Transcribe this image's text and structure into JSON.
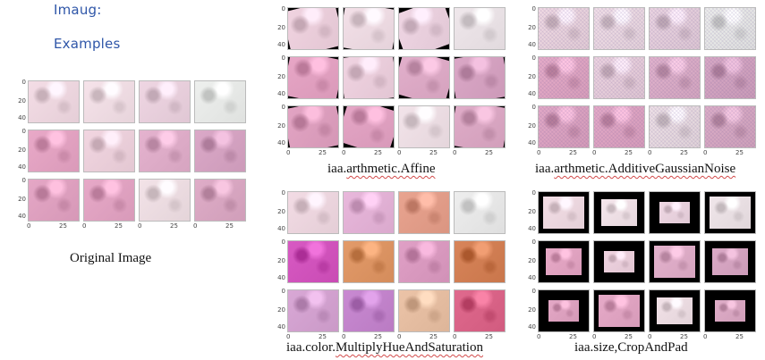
{
  "heading": {
    "line1": "Imaug:",
    "line2": "Examples"
  },
  "axis": {
    "y_ticks": [
      "0",
      "20",
      "40"
    ],
    "x_ticks": [
      "0",
      "25"
    ]
  },
  "panels": [
    {
      "id": "original",
      "caption_plain": "Original Image",
      "caption_squiggle": "",
      "mode": "plain",
      "tiles": [
        [
          "#f4dde6",
          "#f6e3ea",
          "#efd6e3",
          "#eef0ee"
        ],
        [
          "#e9a9c8",
          "#f2d6e1",
          "#e5b3cf",
          "#dba9c8"
        ],
        [
          "#e5a7c6",
          "#e7a9c8",
          "#f3e3e8",
          "#dfadc8"
        ]
      ]
    },
    {
      "id": "affine",
      "caption_plain": "iaa.",
      "caption_squiggle": "arthmetic.Affine",
      "mode": "rotate",
      "tiles": [
        [
          "#f1d4e1",
          "#f4e1e9",
          "#f0d6e4",
          "#f0e8ec"
        ],
        [
          "#e8a7c7",
          "#f1d4e2",
          "#e3b0cc",
          "#dba8c7"
        ],
        [
          "#e3a5c4",
          "#e6a7c7",
          "#f3e4ea",
          "#e0adc9"
        ]
      ]
    },
    {
      "id": "noise",
      "caption_plain": "iaa.",
      "caption_squiggle": "arthmetic.AdditiveGaussianNoise",
      "mode": "noise",
      "tiles": [
        [
          "#f1dbe4",
          "#f2e0e8",
          "#ecd6e2",
          "#eeefed"
        ],
        [
          "#e7adc9",
          "#eed5e1",
          "#e2b4cd",
          "#d9aac6"
        ],
        [
          "#e3aac7",
          "#e5abc8",
          "#efe2e7",
          "#ddafc8"
        ]
      ]
    },
    {
      "id": "hue",
      "caption_plain": "iaa.color.",
      "caption_squiggle": "MultiplyHueAndSaturation",
      "mode": "hue",
      "tiles": [
        [
          "#f3dce5",
          "#e9b8dc",
          "#e9a490",
          "#eeeeee"
        ],
        [
          "#d85ac3",
          "#e39b6a",
          "#e0a0c6",
          "#d8855a"
        ],
        [
          "#d9a8d6",
          "#c98ad2",
          "#ecc4a8",
          "#e06a8e"
        ]
      ]
    },
    {
      "id": "croppad",
      "caption_plain": "iaa.size,CropAndPad",
      "caption_squiggle": "",
      "mode": "pad",
      "tiles": [
        [
          "#f3dee6",
          "#f5e6ec",
          "#efd8e4",
          "#f0e6ea"
        ],
        [
          "#e8aac8",
          "#f0d4e1",
          "#e4b2cd",
          "#dbaac7"
        ],
        [
          "#e4a8c6",
          "#e6aac8",
          "#f2e2e8",
          "#dfadc8"
        ]
      ]
    }
  ]
}
